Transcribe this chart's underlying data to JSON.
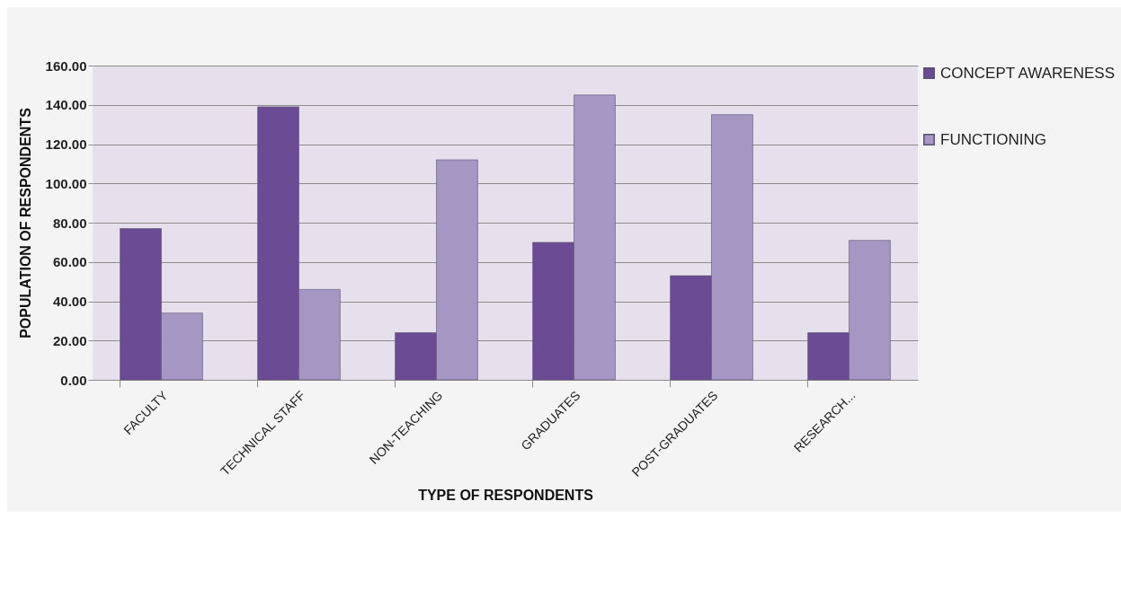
{
  "chart_data": {
    "type": "bar",
    "xlabel": "TYPE OF RESPONDENTS",
    "ylabel": "POPULATION OF RESPONDENTS",
    "categories": [
      "FACULTY",
      "TECHNICAL STAFF",
      "NON-TEACHING",
      "GRADUATES",
      "POST-GRADUATES",
      "RESEARCH..."
    ],
    "series": [
      {
        "name": "CONCEPT AWARENESS",
        "color": "#6a4b94",
        "values": [
          77,
          139,
          24,
          70,
          53,
          24
        ]
      },
      {
        "name": "FUNCTIONING",
        "color": "#a596c4",
        "values": [
          34,
          46,
          112,
          145,
          135,
          71
        ]
      }
    ],
    "ylim": [
      0,
      160
    ],
    "yticks": [
      {
        "value": 0,
        "label": "0.00"
      },
      {
        "value": 20,
        "label": "20.00"
      },
      {
        "value": 40,
        "label": "40.00"
      },
      {
        "value": 60,
        "label": "60.00"
      },
      {
        "value": 80,
        "label": "80.00"
      },
      {
        "value": 100,
        "label": "100.00"
      },
      {
        "value": 120,
        "label": "120.00"
      },
      {
        "value": 140,
        "label": "140.00"
      },
      {
        "value": 160,
        "label": "160.00"
      }
    ],
    "grid": "y",
    "legend": "right"
  }
}
